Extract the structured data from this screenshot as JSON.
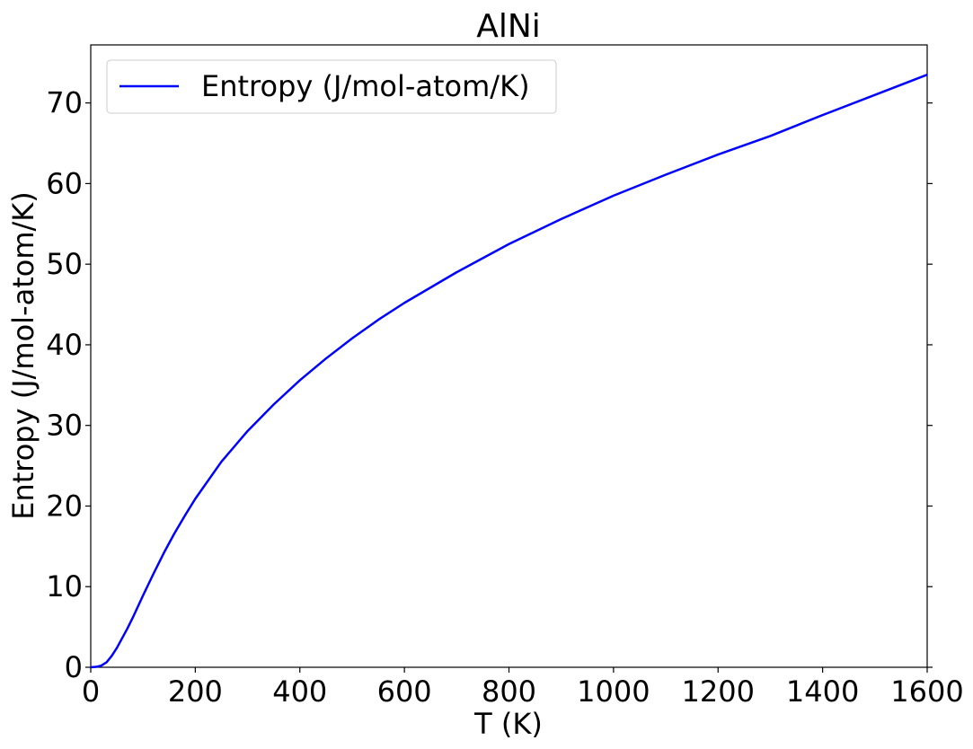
{
  "chart_data": {
    "type": "line",
    "title": "AlNi",
    "xlabel": "T (K)",
    "ylabel": "Entropy (J/mol-atom/K)",
    "xlim": [
      0,
      1600
    ],
    "ylim": [
      0,
      77.2
    ],
    "x_ticks": [
      0,
      200,
      400,
      600,
      800,
      1000,
      1200,
      1400,
      1600
    ],
    "y_ticks": [
      0,
      10,
      20,
      30,
      40,
      50,
      60,
      70
    ],
    "x_tick_labels": [
      "0",
      "200",
      "400",
      "600",
      "800",
      "1000",
      "1200",
      "1400",
      "1600"
    ],
    "y_tick_labels": [
      "0",
      "10",
      "20",
      "30",
      "40",
      "50",
      "60",
      "70"
    ],
    "grid": false,
    "legend_position": "top-left",
    "series": [
      {
        "name": "Entropy (J/mol-atom/K)",
        "color": "#0000ff",
        "x": [
          0,
          10,
          20,
          30,
          40,
          50,
          60,
          70,
          80,
          100,
          120,
          140,
          160,
          180,
          200,
          250,
          300,
          350,
          400,
          450,
          500,
          550,
          600,
          700,
          800,
          900,
          1000,
          1100,
          1200,
          1300,
          1400,
          1500,
          1600
        ],
        "y": [
          0,
          0.05,
          0.2,
          0.6,
          1.4,
          2.4,
          3.6,
          4.8,
          6.1,
          8.9,
          11.6,
          14.2,
          16.6,
          18.8,
          20.9,
          25.5,
          29.3,
          32.6,
          35.6,
          38.3,
          40.8,
          43.1,
          45.2,
          49.0,
          52.5,
          55.6,
          58.5,
          61.1,
          63.6,
          65.9,
          68.5,
          71.0,
          73.5
        ]
      }
    ]
  }
}
